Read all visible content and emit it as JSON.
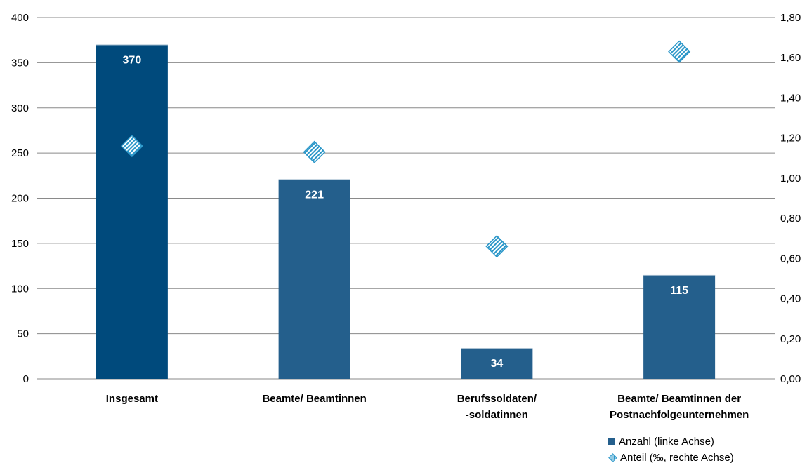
{
  "chart_data": {
    "type": "bar",
    "categories": [
      [
        "Insgesamt"
      ],
      [
        "Beamte/ Beamtinnen"
      ],
      [
        "Berufssoldaten/",
        "-soldatinnen"
      ],
      [
        "Beamte/ Beamtinnen der",
        "Postnachfolgeunternehmen"
      ]
    ],
    "series": [
      {
        "name": "Anzahl (linke Achse)",
        "axis": "left",
        "kind": "bar",
        "values": [
          370,
          221,
          34,
          115
        ],
        "data_labels": [
          "370",
          "221",
          "34",
          "115"
        ],
        "colors": [
          "#004a7c",
          "#245f8c",
          "#245f8c",
          "#245f8c"
        ]
      },
      {
        "name": "Anteil (‰, rechte Achse)",
        "axis": "right",
        "kind": "scatter",
        "marker": "diamond",
        "values": [
          1.16,
          1.13,
          0.66,
          1.63
        ],
        "color": "#2b97c9"
      }
    ],
    "y_left": {
      "ylim": [
        0,
        400
      ],
      "ticks": [
        "0",
        "50",
        "100",
        "150",
        "200",
        "250",
        "300",
        "350",
        "400"
      ]
    },
    "y_right": {
      "ylim": [
        0,
        1.8
      ],
      "ticks": [
        "0,00",
        "0,20",
        "0,40",
        "0,60",
        "0,80",
        "1,00",
        "1,20",
        "1,40",
        "1,60",
        "1,80"
      ]
    },
    "grid": true,
    "legend_position": "bottom-right",
    "title": "",
    "xlabel": "",
    "ylabel": ""
  }
}
